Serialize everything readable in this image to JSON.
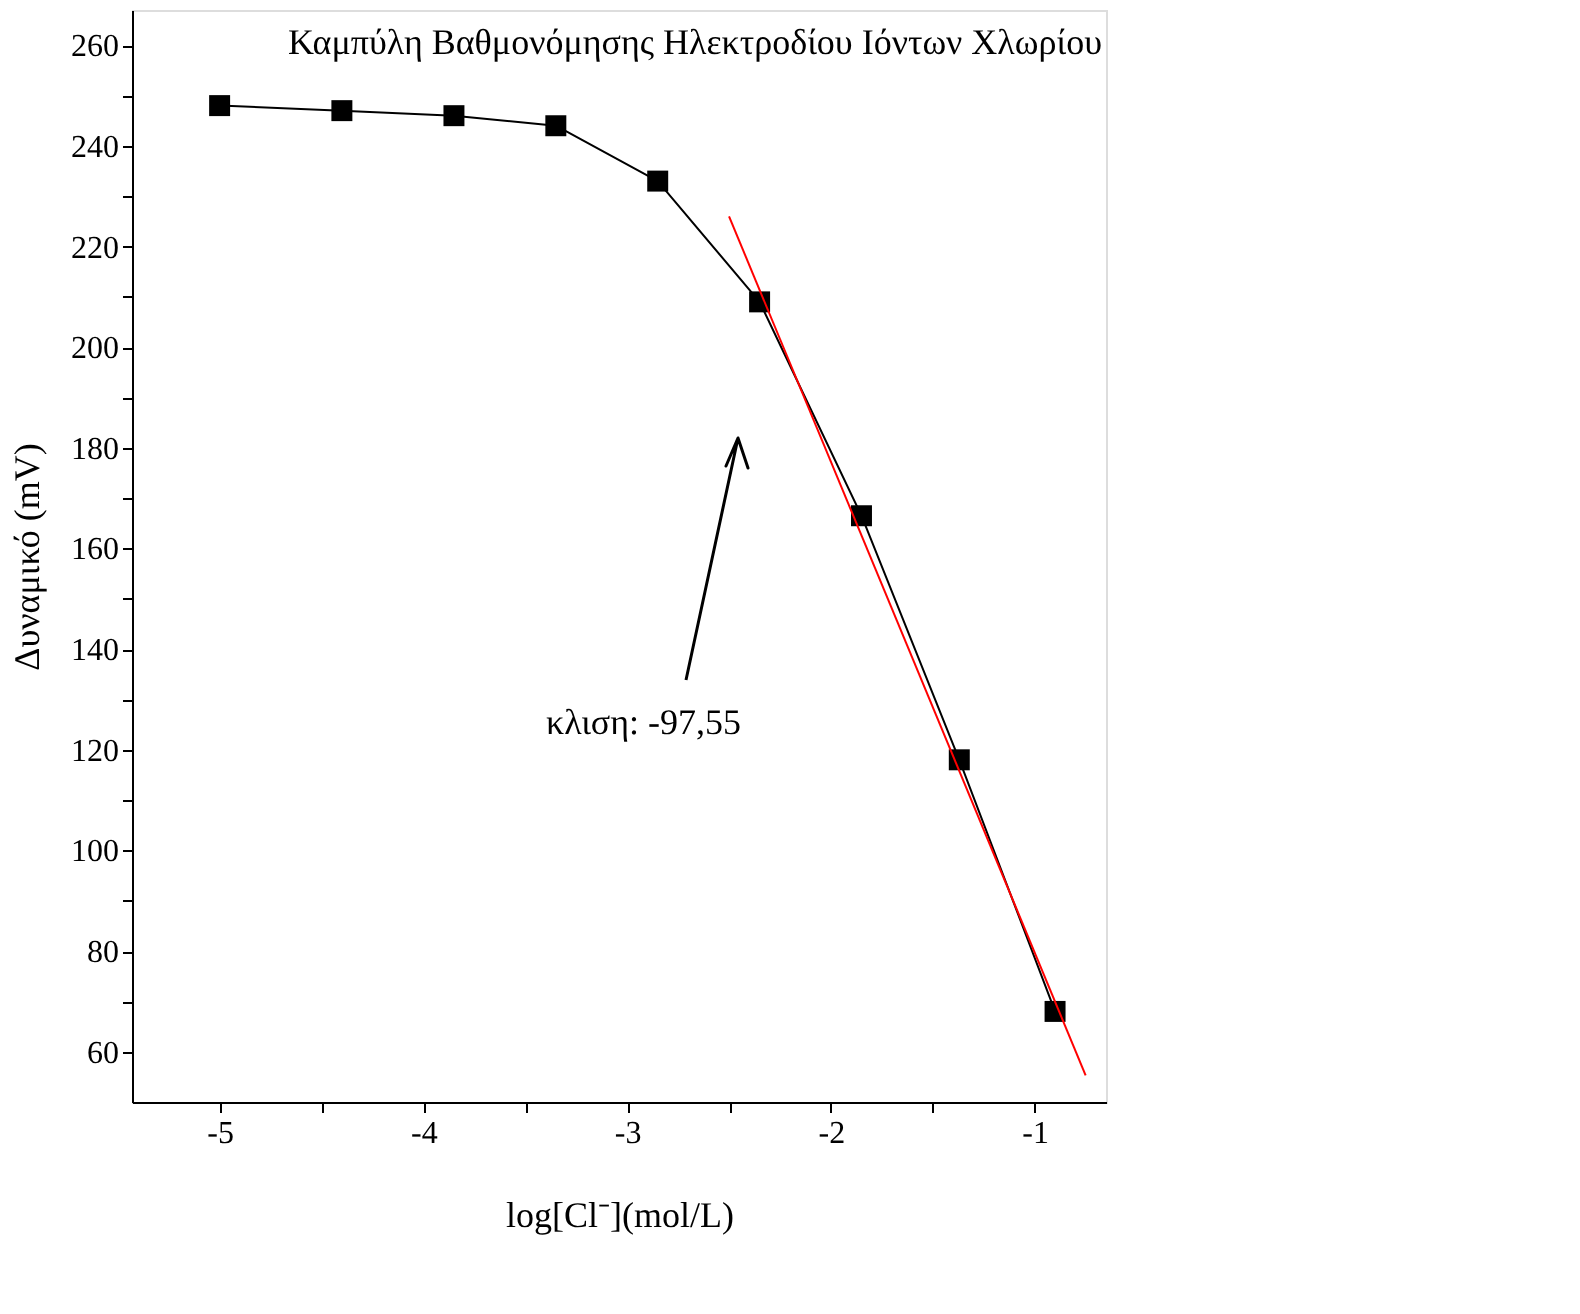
{
  "chart_data": {
    "type": "line",
    "title": "Καμπύλη Βαθμονόμησης Ηλεκτροδίου Ιόντων Χλωρίου",
    "xlabel": "log[Cl⁻](mol/L)",
    "ylabel": "Δυναμικό (mV)",
    "series": [
      {
        "color": "#000000",
        "marker": "square",
        "x": [
          -5,
          -4.4,
          -3.85,
          -3.35,
          -2.85,
          -2.35,
          -1.85,
          -1.37,
          -0.9
        ],
        "values": [
          248,
          247,
          246,
          244,
          233,
          209,
          166.5,
          118,
          68
        ]
      },
      {
        "color": "#ff0000",
        "marker": "none",
        "x": [
          -2.5,
          -0.75
        ],
        "values": [
          226,
          55.3
        ]
      }
    ],
    "xlim": [
      -5.43,
      -0.65
    ],
    "ylim": [
      50,
      267
    ],
    "xticks": [
      -5,
      {
        "value": -4.5,
        "label": null
      },
      -4,
      {
        "value": -3.5,
        "label": null
      },
      -3,
      {
        "value": -2.5,
        "label": null
      },
      -2,
      {
        "value": -1.5,
        "label": null
      },
      -1
    ],
    "yticks": [
      60,
      {
        "value": 70,
        "label": null
      },
      80,
      {
        "value": 90,
        "label": null
      },
      100,
      {
        "value": 110,
        "label": null
      },
      120,
      {
        "value": 130,
        "label": null
      },
      140,
      {
        "value": 150,
        "label": null
      },
      160,
      {
        "value": 170,
        "label": null
      },
      180,
      {
        "value": 190,
        "label": null
      },
      200,
      {
        "value": 210,
        "label": null
      },
      220,
      {
        "value": 230,
        "label": null
      },
      240,
      {
        "value": 250,
        "label": null
      },
      260
    ],
    "annotations": [
      "κλιση: -97,55"
    ],
    "grid": false,
    "line_style": "solid"
  }
}
